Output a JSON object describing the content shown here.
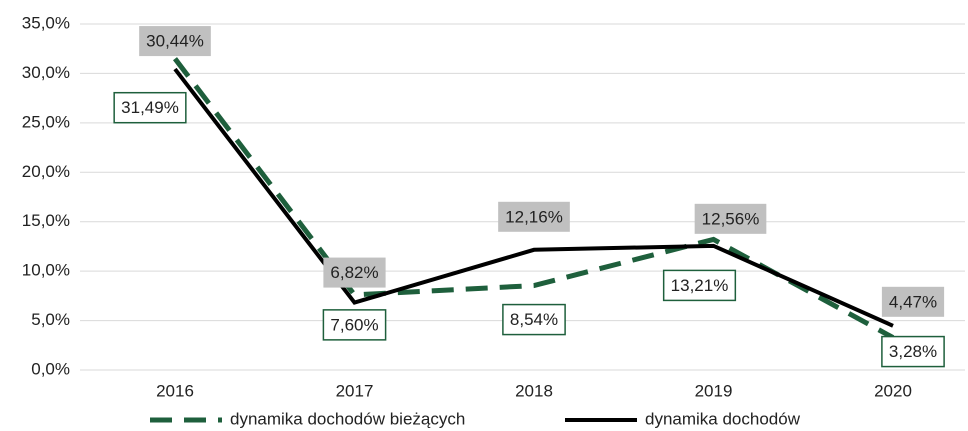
{
  "chart_data": {
    "type": "line",
    "categories": [
      "2016",
      "2017",
      "2018",
      "2019",
      "2020"
    ],
    "series": [
      {
        "name": "dynamika dochodów bieżących",
        "color": "#1e5f3c",
        "dashed": true,
        "values": [
          31.49,
          7.6,
          8.54,
          13.21,
          3.28
        ],
        "value_labels": [
          "31,49%",
          "7,60%",
          "8,54%",
          "13,21%",
          "3,28%"
        ]
      },
      {
        "name": "dynamika dochodów",
        "color": "#000000",
        "dashed": false,
        "values": [
          30.44,
          6.82,
          12.16,
          12.56,
          4.47
        ],
        "value_labels": [
          "30,44%",
          "6,82%",
          "12,16%",
          "12,56%",
          "4,47%"
        ]
      }
    ],
    "ylim": [
      0,
      35
    ],
    "yticks": [
      {
        "value": 0,
        "label": "0,0%"
      },
      {
        "value": 5,
        "label": "5,0%"
      },
      {
        "value": 10,
        "label": "10,0%"
      },
      {
        "value": 15,
        "label": "15,0%"
      },
      {
        "value": 20,
        "label": "20,0%"
      },
      {
        "value": 25,
        "label": "25,0%"
      },
      {
        "value": 30,
        "label": "30,0%"
      },
      {
        "value": 35,
        "label": "35,0%"
      }
    ],
    "grid": true
  }
}
